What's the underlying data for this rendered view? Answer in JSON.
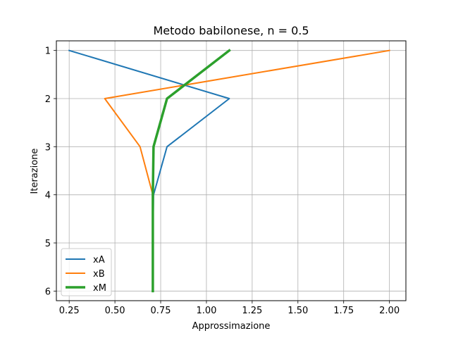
{
  "chart_data": {
    "type": "line",
    "title": "Metodo babilonese, n = 0.5",
    "xlabel": "Approssimazione",
    "ylabel": "Iterazione",
    "xlim": [
      0.18,
      2.09
    ],
    "ylim": [
      6.2,
      0.8
    ],
    "y_inverted": true,
    "grid": true,
    "legend_position": "lower-left",
    "xticks": [
      0.25,
      0.5,
      0.75,
      1.0,
      1.25,
      1.5,
      1.75,
      2.0
    ],
    "xtick_labels": [
      "0.25",
      "0.50",
      "0.75",
      "1.00",
      "1.25",
      "1.50",
      "1.75",
      "2.00"
    ],
    "yticks": [
      1,
      2,
      3,
      4,
      5,
      6
    ],
    "ytick_labels": [
      "1",
      "2",
      "3",
      "4",
      "5",
      "6"
    ],
    "series": [
      {
        "name": "xA",
        "color": "#1f77b4",
        "x": [
          0.25,
          1.125,
          0.7847,
          0.7109,
          0.7071,
          0.7071
        ],
        "y": [
          1,
          2,
          3,
          4,
          5,
          6
        ]
      },
      {
        "name": "xB",
        "color": "#ff7f0e",
        "x": [
          2.0,
          0.4444,
          0.6372,
          0.7071,
          0.7071,
          0.7071
        ],
        "y": [
          1,
          2,
          3,
          4,
          5,
          6
        ]
      },
      {
        "name": "xM",
        "color": "#2ca02c",
        "x": [
          1.125,
          0.7847,
          0.7109,
          0.7071,
          0.7071,
          0.7071
        ],
        "y": [
          1,
          2,
          3,
          4,
          5,
          6
        ]
      }
    ]
  }
}
